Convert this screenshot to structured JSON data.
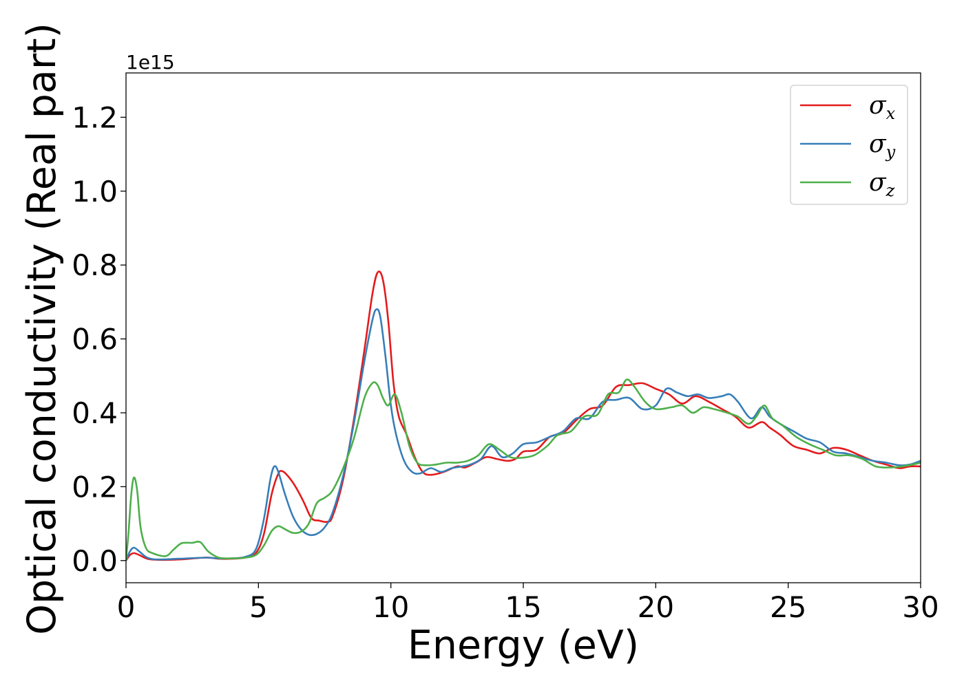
{
  "chart_data": {
    "type": "line",
    "title": "",
    "xlabel": "Energy (eV)",
    "ylabel": "Optical conductivity (Real part)",
    "y_offset_label": "1e15",
    "xlim": [
      0,
      30
    ],
    "ylim": [
      -0.06,
      1.32
    ],
    "xticks": [
      0,
      5,
      10,
      15,
      20,
      25,
      30
    ],
    "xtick_labels": [
      "0",
      "5",
      "10",
      "15",
      "20",
      "25",
      "30"
    ],
    "yticks": [
      0.0,
      0.2,
      0.4,
      0.6,
      0.8,
      1.0,
      1.2
    ],
    "ytick_labels": [
      "0.0",
      "0.2",
      "0.4",
      "0.6",
      "0.8",
      "1.0",
      "1.2"
    ],
    "grid": false,
    "legend_position": "top-right",
    "series": [
      {
        "name": "σx",
        "symbol": "σ",
        "subscript": "x",
        "color": "#e41a1c",
        "points": [
          [
            0,
            0
          ],
          [
            0.15,
            0.015
          ],
          [
            0.3,
            0.02
          ],
          [
            0.5,
            0.015
          ],
          [
            0.8,
            0.005
          ],
          [
            1.2,
            0.002
          ],
          [
            2,
            0.003
          ],
          [
            3,
            0.008
          ],
          [
            3.5,
            0.005
          ],
          [
            4,
            0.005
          ],
          [
            4.5,
            0.008
          ],
          [
            4.9,
            0.02
          ],
          [
            5.2,
            0.07
          ],
          [
            5.5,
            0.18
          ],
          [
            5.75,
            0.235
          ],
          [
            5.9,
            0.242
          ],
          [
            6.1,
            0.23
          ],
          [
            6.4,
            0.2
          ],
          [
            6.7,
            0.16
          ],
          [
            7,
            0.115
          ],
          [
            7.3,
            0.108
          ],
          [
            7.6,
            0.105
          ],
          [
            7.8,
            0.12
          ],
          [
            8.2,
            0.22
          ],
          [
            8.6,
            0.38
          ],
          [
            9,
            0.57
          ],
          [
            9.3,
            0.72
          ],
          [
            9.5,
            0.78
          ],
          [
            9.7,
            0.76
          ],
          [
            9.9,
            0.65
          ],
          [
            10.1,
            0.48
          ],
          [
            10.3,
            0.39
          ],
          [
            10.6,
            0.34
          ],
          [
            10.9,
            0.28
          ],
          [
            11.2,
            0.24
          ],
          [
            11.5,
            0.232
          ],
          [
            12,
            0.24
          ],
          [
            12.5,
            0.255
          ],
          [
            12.8,
            0.252
          ],
          [
            13.2,
            0.265
          ],
          [
            13.6,
            0.28
          ],
          [
            14,
            0.275
          ],
          [
            14.4,
            0.27
          ],
          [
            14.7,
            0.275
          ],
          [
            15,
            0.295
          ],
          [
            15.5,
            0.3
          ],
          [
            16,
            0.335
          ],
          [
            16.5,
            0.345
          ],
          [
            17,
            0.38
          ],
          [
            17.5,
            0.41
          ],
          [
            18,
            0.42
          ],
          [
            18.5,
            0.47
          ],
          [
            19,
            0.475
          ],
          [
            19.5,
            0.48
          ],
          [
            20,
            0.465
          ],
          [
            20.5,
            0.45
          ],
          [
            21,
            0.425
          ],
          [
            21.5,
            0.445
          ],
          [
            22,
            0.43
          ],
          [
            22.5,
            0.41
          ],
          [
            23,
            0.39
          ],
          [
            23.5,
            0.36
          ],
          [
            24,
            0.375
          ],
          [
            24.3,
            0.36
          ],
          [
            24.7,
            0.34
          ],
          [
            25.2,
            0.31
          ],
          [
            25.7,
            0.3
          ],
          [
            26.2,
            0.29
          ],
          [
            26.7,
            0.305
          ],
          [
            27.2,
            0.3
          ],
          [
            27.7,
            0.285
          ],
          [
            28.2,
            0.27
          ],
          [
            28.7,
            0.26
          ],
          [
            29.2,
            0.25
          ],
          [
            29.6,
            0.255
          ],
          [
            30,
            0.255
          ]
        ]
      },
      {
        "name": "σy",
        "symbol": "σ",
        "subscript": "y",
        "color": "#377eb8",
        "points": [
          [
            0,
            0
          ],
          [
            0.15,
            0.025
          ],
          [
            0.3,
            0.035
          ],
          [
            0.5,
            0.025
          ],
          [
            0.8,
            0.008
          ],
          [
            1.2,
            0.003
          ],
          [
            2,
            0.005
          ],
          [
            3,
            0.008
          ],
          [
            3.5,
            0.006
          ],
          [
            4,
            0.006
          ],
          [
            4.5,
            0.01
          ],
          [
            4.9,
            0.03
          ],
          [
            5.2,
            0.11
          ],
          [
            5.45,
            0.22
          ],
          [
            5.6,
            0.255
          ],
          [
            5.75,
            0.24
          ],
          [
            6,
            0.18
          ],
          [
            6.3,
            0.12
          ],
          [
            6.6,
            0.085
          ],
          [
            6.9,
            0.07
          ],
          [
            7.2,
            0.072
          ],
          [
            7.5,
            0.09
          ],
          [
            7.8,
            0.13
          ],
          [
            8.2,
            0.23
          ],
          [
            8.6,
            0.37
          ],
          [
            9,
            0.54
          ],
          [
            9.3,
            0.65
          ],
          [
            9.45,
            0.68
          ],
          [
            9.6,
            0.66
          ],
          [
            9.8,
            0.55
          ],
          [
            10,
            0.42
          ],
          [
            10.2,
            0.34
          ],
          [
            10.5,
            0.27
          ],
          [
            10.8,
            0.24
          ],
          [
            11.1,
            0.236
          ],
          [
            11.5,
            0.25
          ],
          [
            11.9,
            0.24
          ],
          [
            12.3,
            0.25
          ],
          [
            12.7,
            0.255
          ],
          [
            13,
            0.26
          ],
          [
            13.4,
            0.275
          ],
          [
            13.8,
            0.31
          ],
          [
            14.2,
            0.28
          ],
          [
            14.6,
            0.29
          ],
          [
            15,
            0.315
          ],
          [
            15.5,
            0.32
          ],
          [
            16,
            0.335
          ],
          [
            16.5,
            0.35
          ],
          [
            17,
            0.385
          ],
          [
            17.5,
            0.385
          ],
          [
            18,
            0.43
          ],
          [
            18.5,
            0.435
          ],
          [
            19,
            0.44
          ],
          [
            19.5,
            0.41
          ],
          [
            20,
            0.42
          ],
          [
            20.4,
            0.465
          ],
          [
            20.8,
            0.455
          ],
          [
            21.2,
            0.445
          ],
          [
            21.6,
            0.45
          ],
          [
            22,
            0.44
          ],
          [
            22.5,
            0.445
          ],
          [
            22.8,
            0.45
          ],
          [
            23.1,
            0.43
          ],
          [
            23.6,
            0.385
          ],
          [
            24,
            0.415
          ],
          [
            24.3,
            0.39
          ],
          [
            24.7,
            0.37
          ],
          [
            25.2,
            0.35
          ],
          [
            25.7,
            0.33
          ],
          [
            26.2,
            0.32
          ],
          [
            26.7,
            0.295
          ],
          [
            27.2,
            0.29
          ],
          [
            27.7,
            0.28
          ],
          [
            28.2,
            0.27
          ],
          [
            28.7,
            0.265
          ],
          [
            29.2,
            0.258
          ],
          [
            29.6,
            0.26
          ],
          [
            30,
            0.27
          ]
        ]
      },
      {
        "name": "σz",
        "symbol": "σ",
        "subscript": "z",
        "color": "#4daf4a",
        "points": [
          [
            0,
            0
          ],
          [
            0.1,
            0.08
          ],
          [
            0.2,
            0.18
          ],
          [
            0.3,
            0.225
          ],
          [
            0.42,
            0.19
          ],
          [
            0.55,
            0.09
          ],
          [
            0.75,
            0.035
          ],
          [
            1,
            0.02
          ],
          [
            1.5,
            0.012
          ],
          [
            1.8,
            0.03
          ],
          [
            2.1,
            0.047
          ],
          [
            2.5,
            0.048
          ],
          [
            2.8,
            0.05
          ],
          [
            3.1,
            0.025
          ],
          [
            3.5,
            0.008
          ],
          [
            4,
            0.006
          ],
          [
            4.5,
            0.008
          ],
          [
            4.9,
            0.015
          ],
          [
            5.2,
            0.04
          ],
          [
            5.5,
            0.08
          ],
          [
            5.75,
            0.093
          ],
          [
            6,
            0.085
          ],
          [
            6.3,
            0.075
          ],
          [
            6.6,
            0.078
          ],
          [
            6.9,
            0.1
          ],
          [
            7.2,
            0.155
          ],
          [
            7.5,
            0.17
          ],
          [
            7.8,
            0.19
          ],
          [
            8.2,
            0.25
          ],
          [
            8.6,
            0.33
          ],
          [
            9,
            0.44
          ],
          [
            9.3,
            0.48
          ],
          [
            9.5,
            0.475
          ],
          [
            9.7,
            0.44
          ],
          [
            9.9,
            0.42
          ],
          [
            10.15,
            0.45
          ],
          [
            10.4,
            0.4
          ],
          [
            10.7,
            0.31
          ],
          [
            11,
            0.265
          ],
          [
            11.3,
            0.258
          ],
          [
            11.7,
            0.26
          ],
          [
            12.1,
            0.265
          ],
          [
            12.5,
            0.265
          ],
          [
            12.9,
            0.27
          ],
          [
            13.3,
            0.285
          ],
          [
            13.7,
            0.315
          ],
          [
            14.1,
            0.3
          ],
          [
            14.5,
            0.28
          ],
          [
            14.9,
            0.278
          ],
          [
            15.4,
            0.285
          ],
          [
            15.9,
            0.31
          ],
          [
            16.3,
            0.34
          ],
          [
            16.8,
            0.35
          ],
          [
            17.3,
            0.39
          ],
          [
            17.8,
            0.395
          ],
          [
            18.2,
            0.45
          ],
          [
            18.6,
            0.455
          ],
          [
            18.9,
            0.49
          ],
          [
            19.2,
            0.47
          ],
          [
            19.6,
            0.43
          ],
          [
            20,
            0.41
          ],
          [
            20.6,
            0.415
          ],
          [
            21,
            0.42
          ],
          [
            21.4,
            0.4
          ],
          [
            21.8,
            0.415
          ],
          [
            22.2,
            0.41
          ],
          [
            22.7,
            0.4
          ],
          [
            23.1,
            0.39
          ],
          [
            23.5,
            0.37
          ],
          [
            23.8,
            0.39
          ],
          [
            24.1,
            0.42
          ],
          [
            24.4,
            0.385
          ],
          [
            24.8,
            0.365
          ],
          [
            25.3,
            0.335
          ],
          [
            25.8,
            0.315
          ],
          [
            26.3,
            0.3
          ],
          [
            26.8,
            0.285
          ],
          [
            27.3,
            0.285
          ],
          [
            27.8,
            0.275
          ],
          [
            28.3,
            0.255
          ],
          [
            28.8,
            0.252
          ],
          [
            29.3,
            0.255
          ],
          [
            29.7,
            0.26
          ],
          [
            30,
            0.265
          ]
        ]
      }
    ]
  }
}
